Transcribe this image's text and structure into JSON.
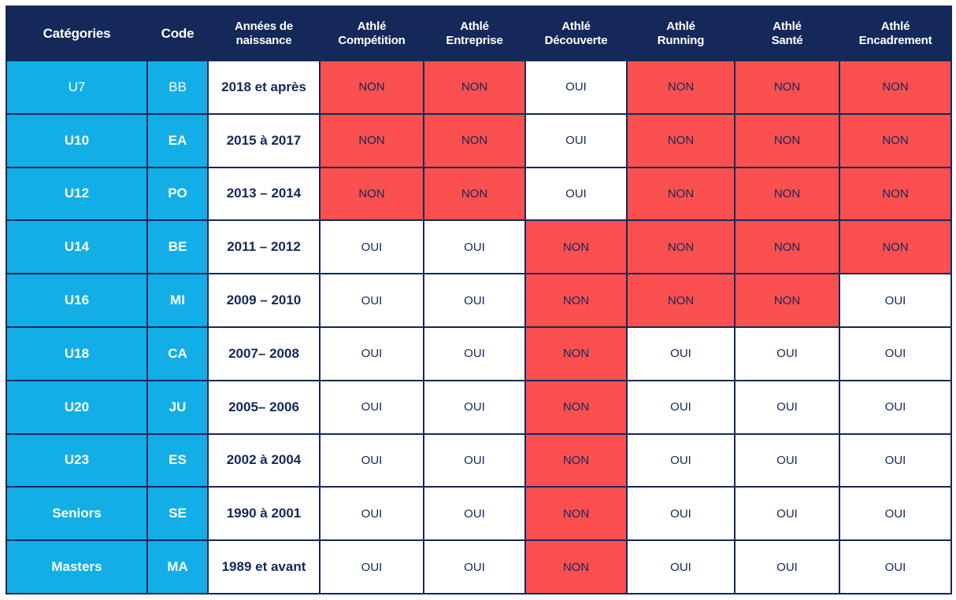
{
  "headers": [
    {
      "line1": "Catégories",
      "line2": ""
    },
    {
      "line1": "Code",
      "line2": ""
    },
    {
      "line1": "Années de",
      "line2": "naissance"
    },
    {
      "line1": "Athlé",
      "line2": "Compétition"
    },
    {
      "line1": "Athlé",
      "line2": "Entreprise"
    },
    {
      "line1": "Athlé",
      "line2": "Découverte"
    },
    {
      "line1": "Athlé",
      "line2": "Running"
    },
    {
      "line1": "Athlé",
      "line2": "Santé"
    },
    {
      "line1": "Athlé",
      "line2": "Encadrement"
    }
  ],
  "rows": [
    {
      "cat": "U7",
      "code": "BB",
      "years": "2018 et après",
      "vals": [
        "NON",
        "NON",
        "OUI",
        "NON",
        "NON",
        "NON"
      ]
    },
    {
      "cat": "U10",
      "code": "EA",
      "years": "2015 à 2017",
      "vals": [
        "NON",
        "NON",
        "OUI",
        "NON",
        "NON",
        "NON"
      ]
    },
    {
      "cat": "U12",
      "code": "PO",
      "years": "2013 – 2014",
      "vals": [
        "NON",
        "NON",
        "OUI",
        "NON",
        "NON",
        "NON"
      ]
    },
    {
      "cat": "U14",
      "code": "BE",
      "years": "2011 – 2012",
      "vals": [
        "OUI",
        "OUI",
        "NON",
        "NON",
        "NON",
        "NON"
      ]
    },
    {
      "cat": "U16",
      "code": "MI",
      "years": "2009 – 2010",
      "vals": [
        "OUI",
        "OUI",
        "NON",
        "NON",
        "NON",
        "OUI"
      ]
    },
    {
      "cat": "U18",
      "code": "CA",
      "years": "2007– 2008",
      "vals": [
        "OUI",
        "OUI",
        "NON",
        "OUI",
        "OUI",
        "OUI"
      ]
    },
    {
      "cat": "U20",
      "code": "JU",
      "years": "2005– 2006",
      "vals": [
        "OUI",
        "OUI",
        "NON",
        "OUI",
        "OUI",
        "OUI"
      ]
    },
    {
      "cat": "U23",
      "code": "ES",
      "years": "2002 à 2004",
      "vals": [
        "OUI",
        "OUI",
        "NON",
        "OUI",
        "OUI",
        "OUI"
      ]
    },
    {
      "cat": "Seniors",
      "code": "SE",
      "years": "1990 à 2001",
      "vals": [
        "OUI",
        "OUI",
        "NON",
        "OUI",
        "OUI",
        "OUI"
      ]
    },
    {
      "cat": "Masters",
      "code": "MA",
      "years": "1989 et avant",
      "vals": [
        "OUI",
        "OUI",
        "NON",
        "OUI",
        "OUI",
        "OUI"
      ]
    }
  ],
  "colors": {
    "header": "#14285a",
    "category": "#13aee6",
    "no": "#fa5050",
    "yes": "#ffffff"
  }
}
